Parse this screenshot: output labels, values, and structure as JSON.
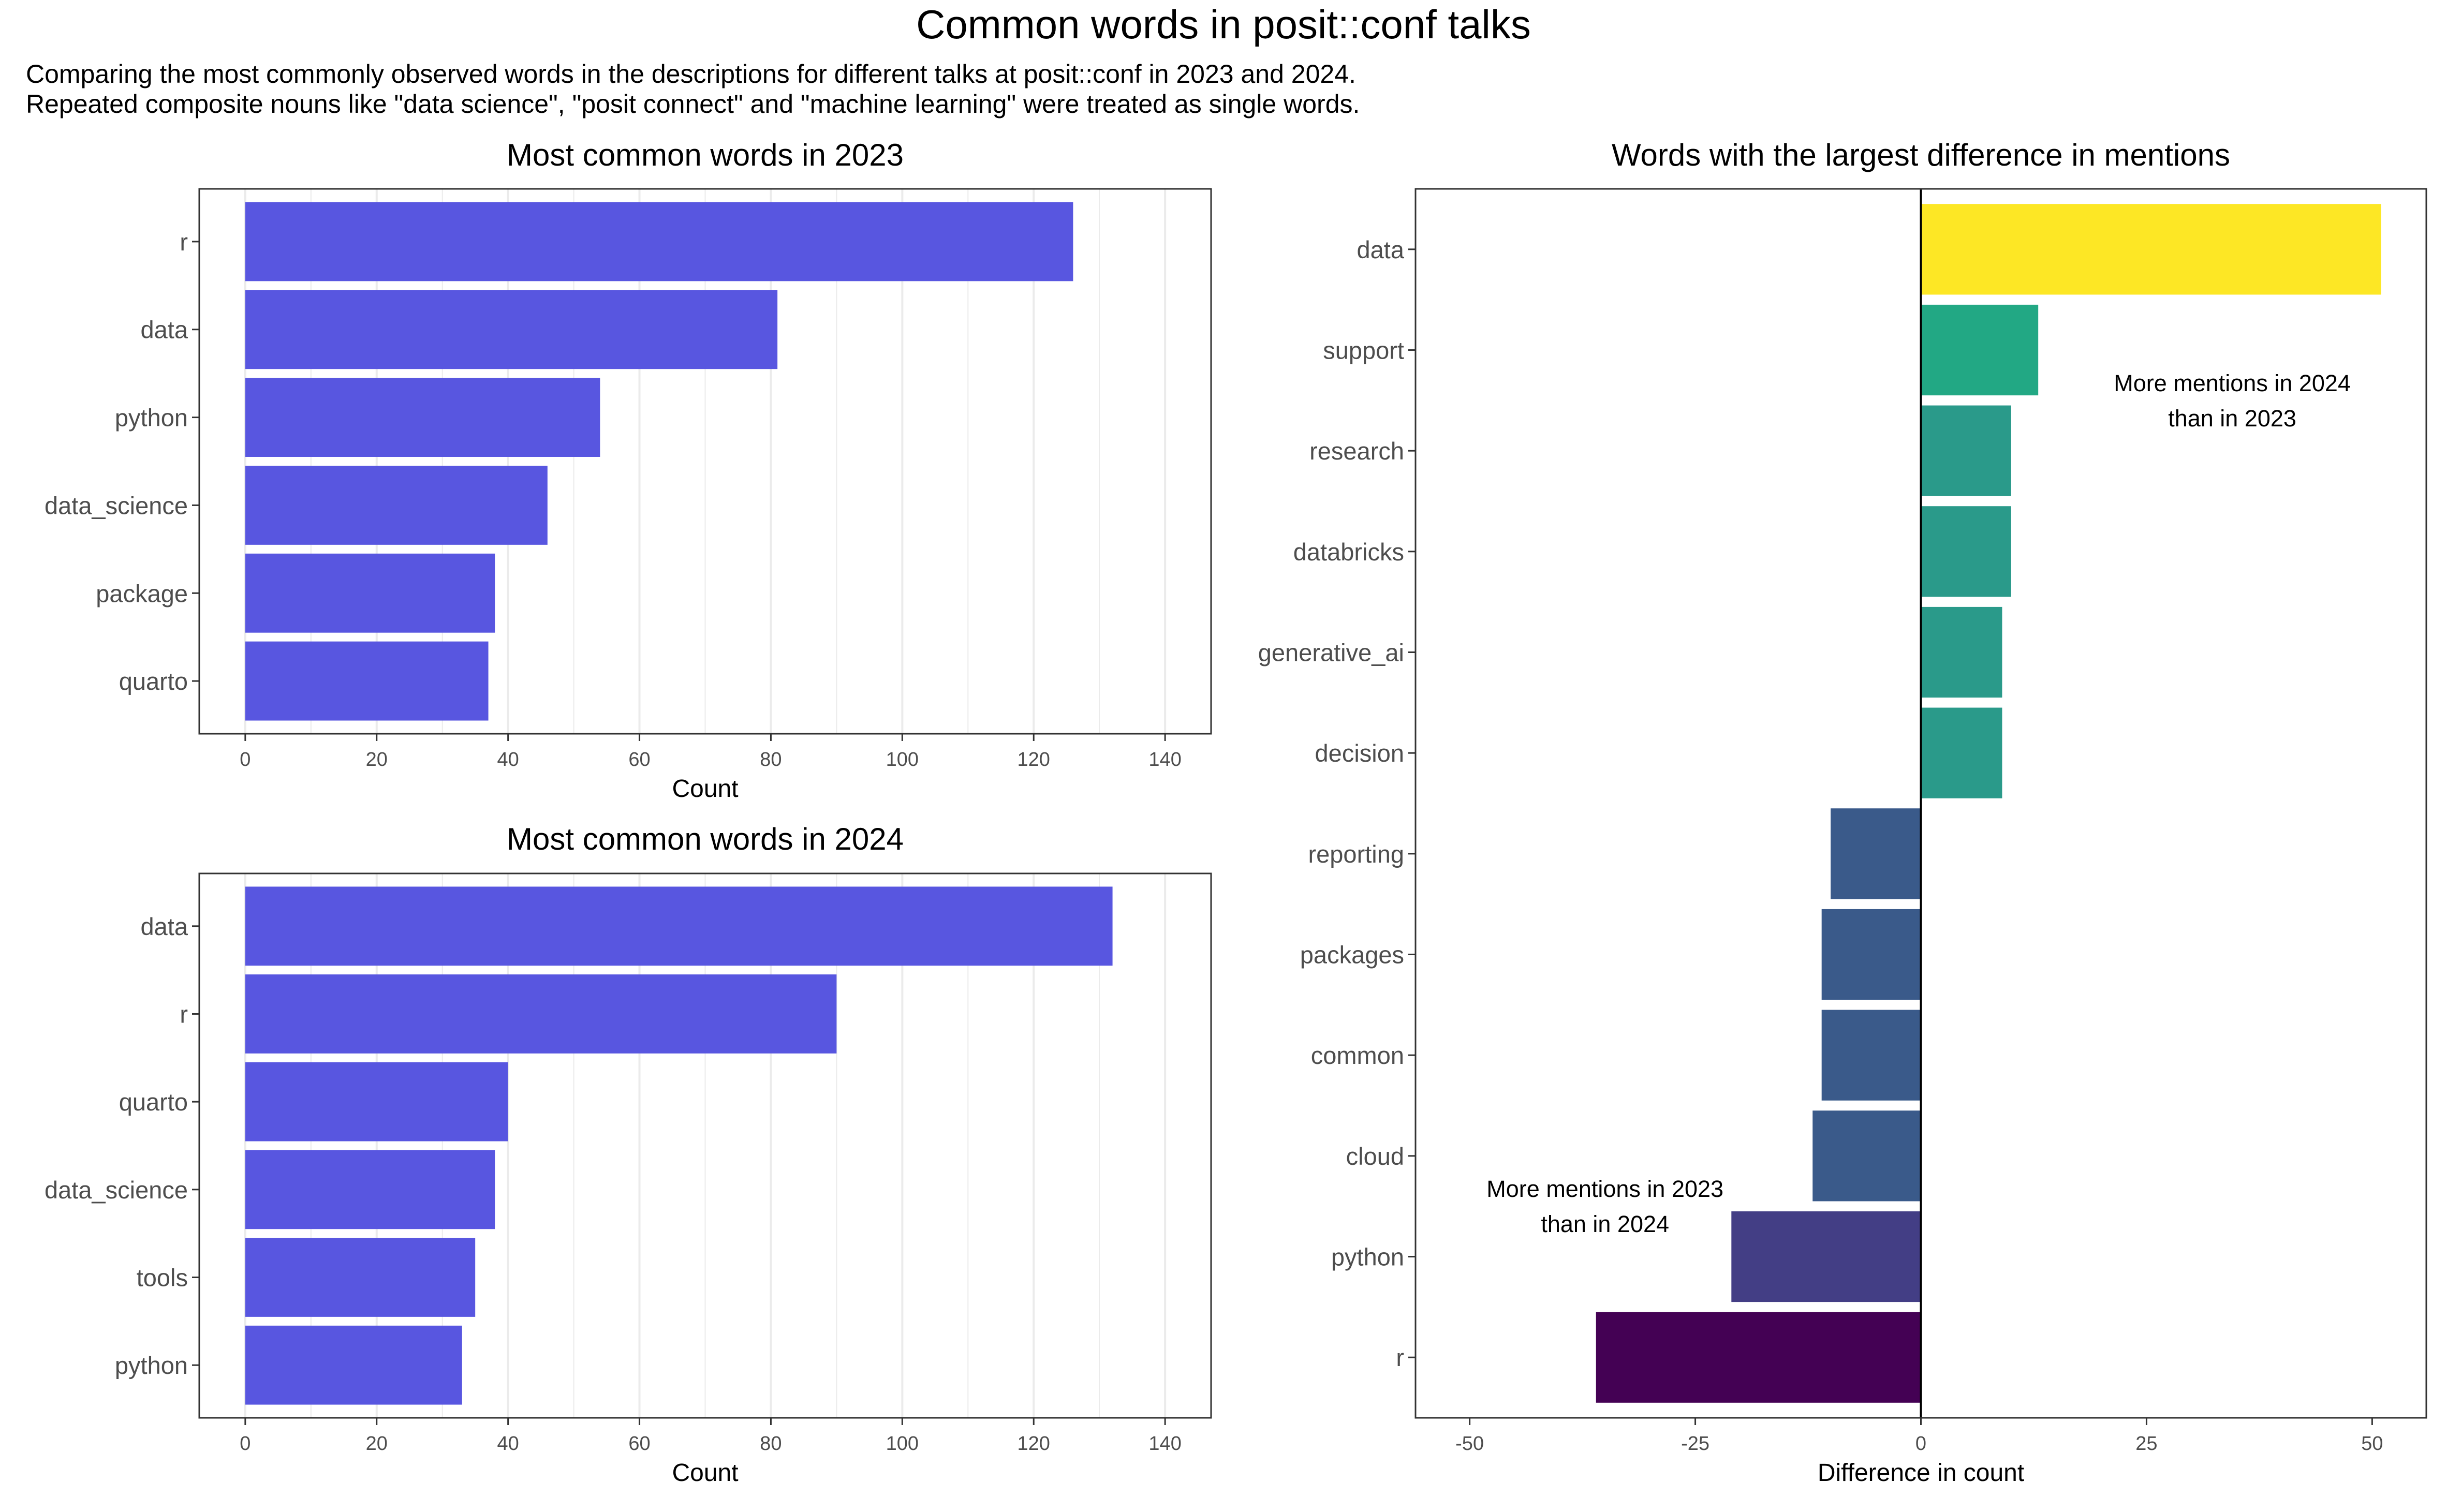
{
  "title": "Common words in posit::conf talks",
  "subtitle_lines": [
    "Comparing the most commonly observed words in the descriptions for different talks at posit::conf in 2023 and 2024.",
    "Repeated composite nouns like \"data science\", \"posit connect\" and \"machine learning\" were treated as single words."
  ],
  "colors": {
    "bar_fill": "#5856E0",
    "background": "#FFFFFF",
    "panel_border": "#333333",
    "gridline": "#EBEBEB",
    "axis_text": "#4D4D4D",
    "text": "#000000"
  },
  "chart_data": [
    {
      "type": "bar",
      "orientation": "horizontal",
      "title": "Most common words in 2023",
      "xlabel": "Count",
      "ylabel": "",
      "categories": [
        "r",
        "data",
        "python",
        "data_science",
        "package",
        "quarto"
      ],
      "values": [
        126,
        81,
        54,
        46,
        38,
        37
      ],
      "xlim": [
        -7,
        147
      ],
      "xticks": [
        0,
        20,
        40,
        60,
        80,
        100,
        120,
        140
      ],
      "grid": "vertical major and minor",
      "fill": "#5856E0"
    },
    {
      "type": "bar",
      "orientation": "horizontal",
      "title": "Most common words in 2024",
      "xlabel": "Count",
      "ylabel": "",
      "categories": [
        "data",
        "r",
        "quarto",
        "data_science",
        "tools",
        "python"
      ],
      "values": [
        132,
        90,
        40,
        38,
        35,
        33
      ],
      "xlim": [
        -7,
        147
      ],
      "xticks": [
        0,
        20,
        40,
        60,
        80,
        100,
        120,
        140
      ],
      "grid": "vertical major and minor",
      "fill": "#5856E0"
    },
    {
      "type": "bar",
      "orientation": "horizontal",
      "title": "Words with the largest difference in mentions",
      "xlabel": "Difference in count",
      "ylabel": "",
      "categories": [
        "data",
        "support",
        "research",
        "databricks",
        "generative_ai",
        "decision",
        "reporting",
        "packages",
        "common",
        "cloud",
        "python",
        "r"
      ],
      "values": [
        51,
        13,
        10,
        10,
        9,
        9,
        -10,
        -11,
        -11,
        -12,
        -21,
        -36
      ],
      "colors": [
        "#FDE725",
        "#22A884",
        "#2A9A8A",
        "#2A9A8A",
        "#2A9A8A",
        "#2A9A8A",
        "#3A5A8A",
        "#3A5A8A",
        "#3A5A8A",
        "#3A5A8A",
        "#433E85",
        "#440154"
      ],
      "xlim": [
        -56,
        56
      ],
      "xticks": [
        -50,
        -25,
        0,
        25,
        50
      ],
      "zero_line": true,
      "grid": "off",
      "annotations": [
        {
          "lines": [
            "More mentions in 2024",
            "than in 2023"
          ],
          "x": 34.5,
          "y_between": [
            "support",
            "research"
          ]
        },
        {
          "lines": [
            "More mentions in 2023",
            "than in 2024"
          ],
          "x": -35,
          "y_between": [
            "cloud",
            "python"
          ]
        }
      ]
    }
  ]
}
